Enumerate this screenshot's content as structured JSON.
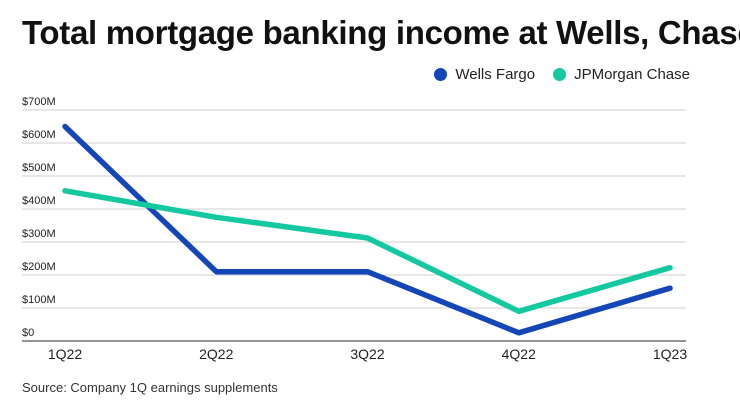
{
  "chart_data": {
    "type": "line",
    "title": "Total mortgage banking income at Wells, Chase",
    "categories": [
      "1Q22",
      "2Q22",
      "3Q22",
      "4Q22",
      "1Q23"
    ],
    "series": [
      {
        "name": "Wells Fargo",
        "color": "#1446b8",
        "values": [
          650,
          210,
          210,
          25,
          160
        ]
      },
      {
        "name": "JPMorgan Chase",
        "color": "#14c8a0",
        "values": [
          455,
          375,
          312,
          90,
          222
        ]
      }
    ],
    "y_tick_labels": [
      "$0",
      "$100M",
      "$200M",
      "$300M",
      "$400M",
      "$500M",
      "$600M",
      "$700M"
    ],
    "y_ticks": [
      0,
      100,
      200,
      300,
      400,
      500,
      600,
      700
    ],
    "ylim": [
      0,
      700
    ],
    "xlabel": "",
    "ylabel": "",
    "grid": true,
    "legend_position": "top-right"
  },
  "source": "Source: Company 1Q earnings supplements"
}
